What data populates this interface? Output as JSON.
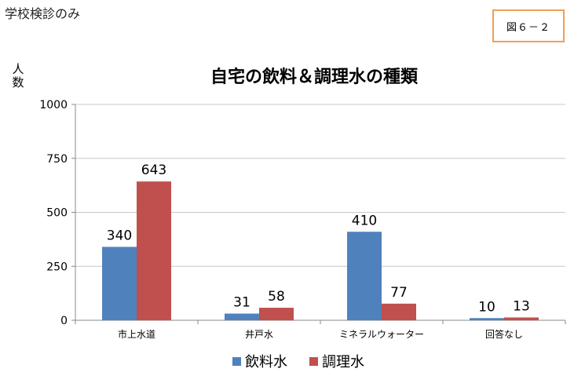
{
  "page": {
    "top_note": "学校検診のみ",
    "figure_label": "図６－２",
    "y_unit": "人数"
  },
  "chart_data": {
    "type": "bar",
    "title": "自宅の飲料＆調理水の種類",
    "ylabel": "人数",
    "xlabel": "",
    "categories": [
      "市上水道",
      "井戸水",
      "ミネラルウォーター",
      "回答なし"
    ],
    "series": [
      {
        "name": "飲料水",
        "values": [
          340,
          31,
          410,
          10
        ],
        "color": "#4f81bd"
      },
      {
        "name": "調理水",
        "values": [
          643,
          58,
          77,
          13
        ],
        "color": "#c0504d"
      }
    ],
    "ylim": [
      0,
      1000
    ],
    "yticks": [
      0,
      250,
      500,
      750,
      1000
    ],
    "grid": true,
    "legend_position": "bottom"
  }
}
